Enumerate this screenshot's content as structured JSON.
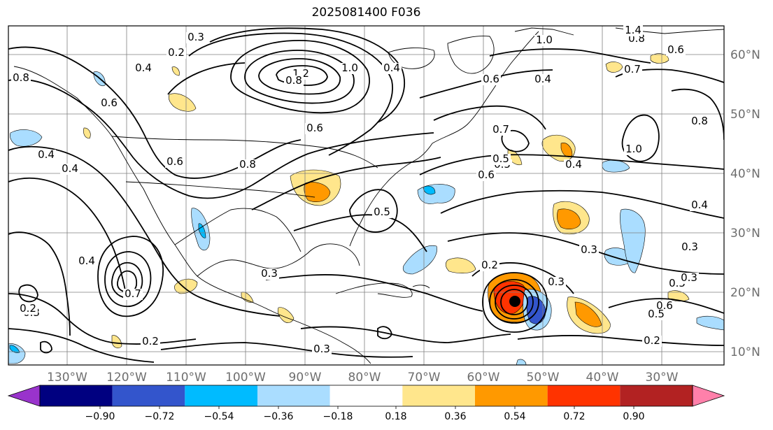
{
  "title": "2025081400 F036",
  "map": {
    "lon_labels": [
      "130°W",
      "120°W",
      "110°W",
      "100°W",
      "90°W",
      "80°W",
      "70°W",
      "60°W",
      "50°W",
      "40°W",
      "30°W"
    ],
    "lat_labels": [
      "60°N",
      "50°N",
      "40°N",
      "30°N",
      "20°N",
      "10°N"
    ],
    "gridlines": true,
    "line_color": "#000000",
    "coast_color": "#000000"
  },
  "colorbar": {
    "tick_labels": [
      "−0.90",
      "−0.72",
      "−0.54",
      "−0.36",
      "−0.18",
      "0.18",
      "0.36",
      "0.54",
      "0.72",
      "0.90"
    ],
    "colors": [
      "#9933cc",
      "#000080",
      "#3355cc",
      "#00bbff",
      "#aaddff",
      "#ffffff",
      "#ffe68c",
      "#ff9900",
      "#ff3300",
      "#b22222",
      "#ff80aa"
    ],
    "extend": "both"
  },
  "contour_labels": [
    "0.3",
    "0.2",
    "0.4",
    "0.8",
    "0.6",
    "0.4",
    "0.6",
    "0.4",
    "0.8",
    "1.2",
    "1.0",
    "0.8",
    "0.6",
    "0.4",
    "0.5",
    "0.6",
    "0.5",
    "0.3",
    "0.4",
    "0.7",
    "0.3",
    "0.2",
    "0.3",
    "0.2",
    "1.0",
    "0.8",
    "0.6",
    "0.7",
    "1.0",
    "0.8",
    "0.4",
    "0.4",
    "0.3",
    "0.5",
    "0.6",
    "0.5",
    "0.3",
    "0.2",
    "0.3",
    "1.4",
    "0.2",
    "0.6",
    "0.4",
    "0.7",
    "0.5",
    "0.3"
  ]
}
